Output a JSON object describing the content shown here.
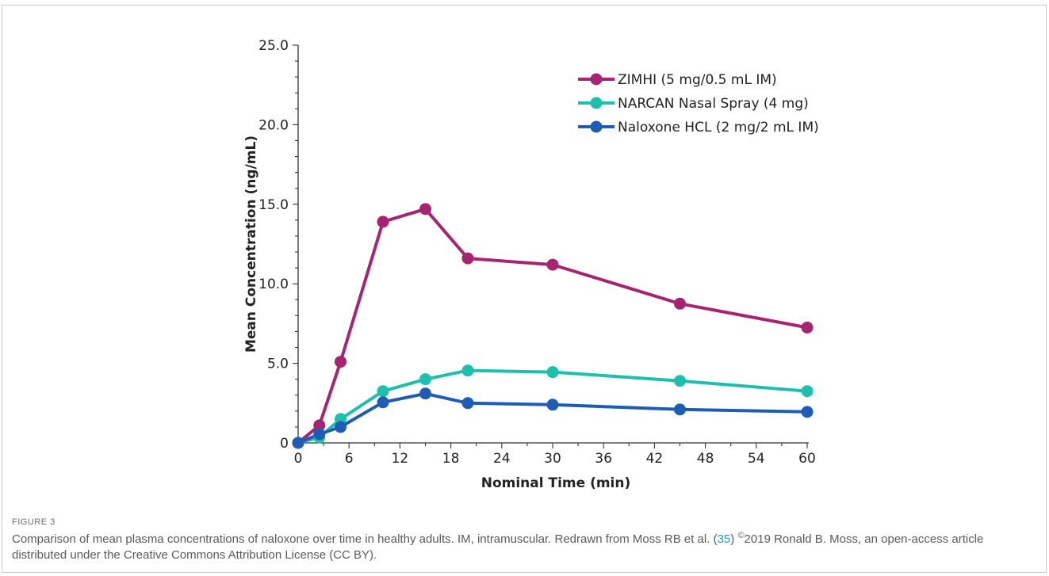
{
  "chart_data": {
    "type": "line",
    "xlabel": "Nominal Time (min)",
    "ylabel": "Mean Concentration (ng/mL)",
    "xlim": [
      0,
      60
    ],
    "ylim": [
      0,
      25
    ],
    "x_ticks": [
      0,
      6,
      12,
      18,
      24,
      30,
      36,
      42,
      48,
      54,
      60
    ],
    "x_tick_labels": [
      "0",
      "6",
      "12",
      "18",
      "24",
      "30",
      "36",
      "42",
      "48",
      "54",
      "60"
    ],
    "y_ticks": [
      0,
      5,
      10,
      15,
      20,
      25
    ],
    "y_tick_labels": [
      "0",
      "5.0",
      "10.0",
      "15.0",
      "20.0",
      "25.0"
    ],
    "grid": false,
    "legend_position": "top-right",
    "series": [
      {
        "name": "ZIMHI (5 mg/0.5 mL IM)",
        "color": "#a62471",
        "x": [
          0,
          2.5,
          5,
          10,
          15,
          20,
          30,
          45,
          60
        ],
        "y": [
          0,
          1.1,
          5.1,
          13.9,
          14.7,
          11.6,
          11.2,
          8.75,
          7.25
        ]
      },
      {
        "name": "NARCAN Nasal Spray (4 mg)",
        "color": "#1cc0ad",
        "x": [
          0,
          2.5,
          5,
          10,
          15,
          20,
          30,
          45,
          60
        ],
        "y": [
          0,
          0.35,
          1.5,
          3.25,
          4.0,
          4.55,
          4.45,
          3.9,
          3.25
        ]
      },
      {
        "name": "Naloxone HCL (2 mg/2 mL IM)",
        "color": "#1e5db3",
        "x": [
          0,
          2.5,
          5,
          10,
          15,
          20,
          30,
          45,
          60
        ],
        "y": [
          0,
          0.55,
          1.0,
          2.55,
          3.1,
          2.5,
          2.4,
          2.1,
          1.95
        ]
      }
    ]
  },
  "figure": {
    "label": "FIGURE 3",
    "caption_text_1": "Comparison of mean plasma concentrations of naloxone over time in healthy adults. IM, intramuscular. Redrawn from Moss RB et al. (",
    "caption_ref": "35",
    "caption_text_2": ") ",
    "caption_copyright": "©",
    "caption_text_3": "2019 Ronald B. Moss, an open-access article distributed under the Creative Commons Attribution License (CC BY)."
  }
}
